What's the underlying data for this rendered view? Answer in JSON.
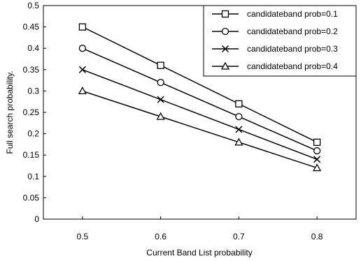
{
  "chart_data": {
    "type": "line",
    "title": "",
    "xlabel": "Current Band List probability",
    "ylabel": "Full search probability.",
    "x": [
      0.5,
      0.6,
      0.7,
      0.8
    ],
    "x_tick_labels": [
      "0.5",
      "0.6",
      "0.7",
      "0.8"
    ],
    "y_tick_labels": [
      "0",
      "0.05",
      "0.1",
      "0.15",
      "0.2",
      "0.25",
      "0.3",
      "0.35",
      "0.4",
      "0.45",
      "0.5"
    ],
    "ylim": [
      0,
      0.5
    ],
    "grid": false,
    "legend_position": "top-right",
    "series": [
      {
        "name": "candidateband prob=0.1",
        "marker": "square",
        "values": [
          0.45,
          0.36,
          0.27,
          0.18
        ]
      },
      {
        "name": "candidateband prob=0.2",
        "marker": "circle",
        "values": [
          0.4,
          0.32,
          0.24,
          0.16
        ]
      },
      {
        "name": "candidateband prob=0.3",
        "marker": "x",
        "values": [
          0.35,
          0.28,
          0.21,
          0.14
        ]
      },
      {
        "name": "candidateband prob=0.4",
        "marker": "triangle",
        "values": [
          0.3,
          0.24,
          0.18,
          0.12
        ]
      }
    ],
    "colors": {
      "line": "#000000",
      "background": "#ffffff"
    }
  }
}
